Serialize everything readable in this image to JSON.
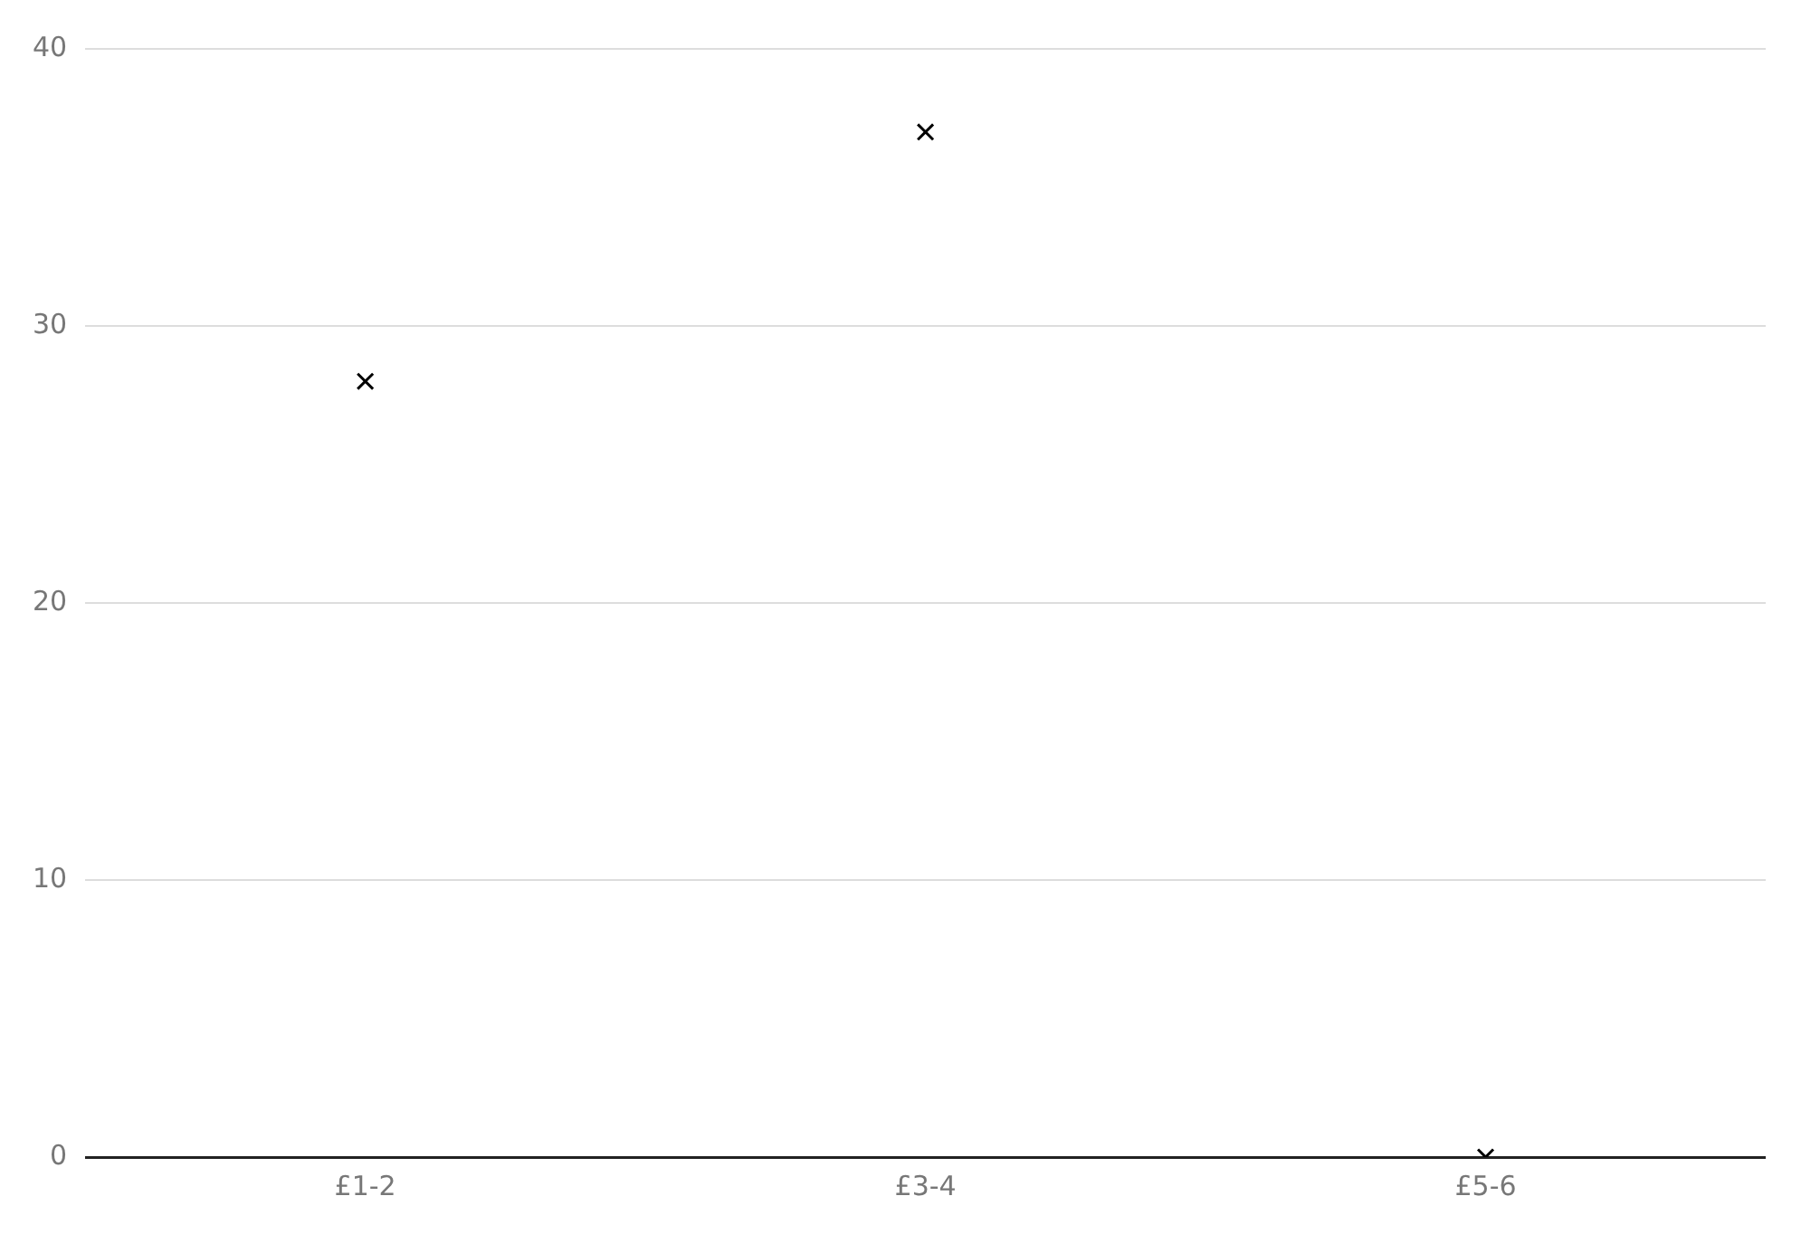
{
  "chart_data": {
    "type": "scatter",
    "categories": [
      "£1-2",
      "£3-4",
      "£5-6"
    ],
    "series": [
      {
        "color": "#000000",
        "values": [
          28,
          37,
          0
        ]
      }
    ],
    "ylim": [
      0,
      40
    ],
    "yticks": [
      0,
      10,
      20,
      30,
      40
    ],
    "grid": "y",
    "marker": "cross",
    "legend": false
  }
}
